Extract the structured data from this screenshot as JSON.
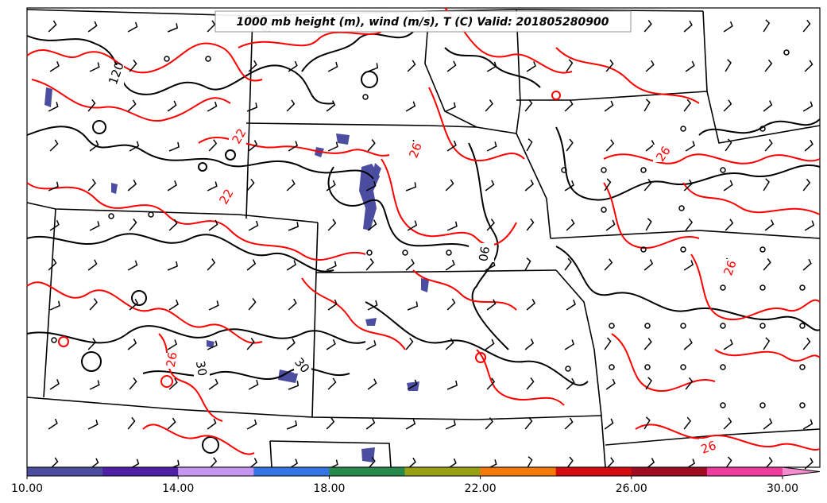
{
  "title": "1000 mb height (m), wind (m/s), T (C) Valid: 201805280900",
  "colorbar": {
    "min": 10,
    "max": 30,
    "extend": "max",
    "ticks": [
      "10.00",
      "14.00",
      "18.00",
      "22.00",
      "26.00",
      "30.00"
    ],
    "colors": [
      "#4b4da0",
      "#4f1fa8",
      "#c596f0",
      "#3574e2",
      "#268a4a",
      "#98a014",
      "#f57a0a",
      "#d40c10",
      "#a00c22",
      "#f03c9c"
    ],
    "extend_color": "#f48ccf"
  },
  "height_contour_labels": [
    "90",
    "120",
    "90",
    "30",
    "30"
  ],
  "temperature_contour_labels": [
    "22",
    "22",
    "26",
    "26",
    "26",
    "26",
    "26"
  ],
  "colors": {
    "height_contours": "#000000",
    "temperature_contours": "#ff0000",
    "borders": "#000000",
    "precip_shading": "#4b4da0"
  }
}
